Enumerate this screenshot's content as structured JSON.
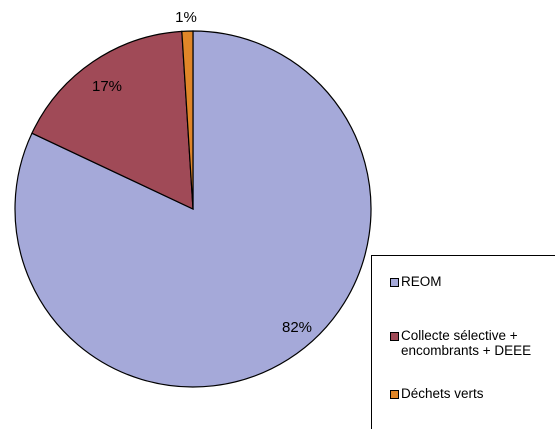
{
  "chart_data": {
    "type": "pie",
    "title": "",
    "categories": [
      "REOM",
      "Collecte sélective + encombrants + DEEE",
      "Déchets verts"
    ],
    "values": [
      82,
      17,
      1
    ],
    "data_labels": [
      "82%",
      "17%",
      "1%"
    ],
    "colors": [
      "#a5a9d9",
      "#a04a57",
      "#e08628"
    ],
    "start_angle_deg": 0,
    "direction": "clockwise",
    "legend": {
      "placement": "bottom-right",
      "entries": [
        {
          "label": "REOM",
          "color": "#a5a9d9"
        },
        {
          "label": "Collecte sélective +\nencombrants + DEEE",
          "color": "#a04a57"
        },
        {
          "label": "Déchets verts",
          "color": "#e08628"
        }
      ]
    }
  }
}
